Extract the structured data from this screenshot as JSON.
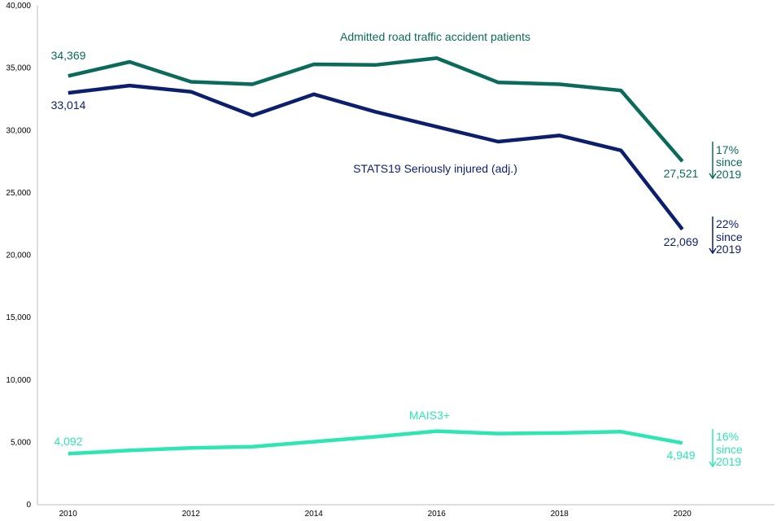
{
  "chart_data": {
    "type": "line",
    "title": "",
    "xlabel": "",
    "ylabel": "",
    "x": [
      2010,
      2011,
      2012,
      2013,
      2014,
      2015,
      2016,
      2017,
      2018,
      2019,
      2020
    ],
    "xlim": [
      2009.5,
      2021.5
    ],
    "ylim": [
      0,
      40000
    ],
    "y_ticks": [
      "0",
      "5,000",
      "10,000",
      "15,000",
      "20,000",
      "25,000",
      "30,000",
      "35,000",
      "40,000"
    ],
    "x_ticks": [
      "2010",
      "2012",
      "2014",
      "2016",
      "2018",
      "2020"
    ],
    "grid": false,
    "series": [
      {
        "name": "Admitted road traffic accident patients",
        "color": "#0b6b5a",
        "values": [
          34369,
          35500,
          33900,
          33700,
          35300,
          35250,
          35800,
          33850,
          33700,
          33200,
          27521
        ],
        "start_label": "34,369",
        "end_label": "27,521",
        "change": [
          "17%",
          "since",
          "2019"
        ]
      },
      {
        "name": "STATS19 Seriously injured (adj.)",
        "color": "#0b1f6e",
        "values": [
          33014,
          33600,
          33100,
          31200,
          32900,
          31500,
          30300,
          29100,
          29600,
          28400,
          22069
        ],
        "start_label": "33,014",
        "end_label": "22,069",
        "change": [
          "22%",
          "since",
          "2019"
        ]
      },
      {
        "name": "MAIS3+",
        "color": "#2ee6b4",
        "values": [
          4092,
          4350,
          4550,
          4650,
          5050,
          5450,
          5900,
          5700,
          5750,
          5850,
          4949
        ],
        "start_label": "4,092",
        "end_label": "4,949",
        "change": [
          "16%",
          "since",
          "2019"
        ]
      }
    ]
  }
}
